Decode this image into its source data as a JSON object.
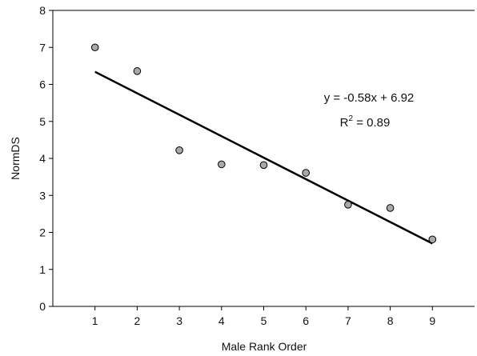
{
  "chart_data": {
    "type": "scatter",
    "xlabel": "Male Rank Order",
    "ylabel": "NormDS",
    "xlim": [
      0,
      10
    ],
    "ylim": [
      0,
      8
    ],
    "x_ticks": [
      1,
      2,
      3,
      4,
      5,
      6,
      7,
      8,
      9
    ],
    "y_ticks": [
      0,
      1,
      2,
      3,
      4,
      5,
      6,
      7,
      8
    ],
    "grid": false,
    "points": [
      {
        "x": 1,
        "y": 7.0
      },
      {
        "x": 2,
        "y": 6.36
      },
      {
        "x": 3,
        "y": 4.22
      },
      {
        "x": 4,
        "y": 3.84
      },
      {
        "x": 5,
        "y": 3.82
      },
      {
        "x": 6,
        "y": 3.61
      },
      {
        "x": 7,
        "y": 2.75
      },
      {
        "x": 8,
        "y": 2.66
      },
      {
        "x": 9,
        "y": 1.81
      }
    ],
    "marker_color": "#a9a9a9",
    "trendline": {
      "slope": -0.58,
      "intercept": 6.92,
      "x_range": [
        1,
        9
      ],
      "equation_label": "y = -0.58x + 6.92",
      "r2_prefix": "R",
      "r2_superscript": "2",
      "r2_value_text": " = 0.89"
    }
  }
}
